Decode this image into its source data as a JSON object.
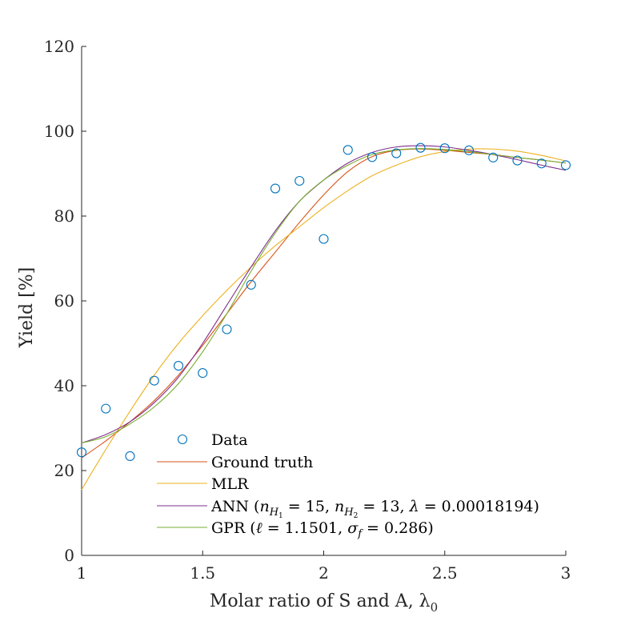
{
  "chart_data": {
    "type": "line",
    "xlabel": "Molar ratio of S and A, λ",
    "xlabel_subscript": "0",
    "ylabel": "Yield [%]",
    "xlim": [
      1,
      3
    ],
    "ylim": [
      0,
      120
    ],
    "x_ticks": [
      1,
      1.5,
      2,
      2.5,
      3
    ],
    "x_tick_labels": [
      "1",
      "1.5",
      "2",
      "2.5",
      "3"
    ],
    "y_ticks": [
      0,
      20,
      40,
      60,
      80,
      100,
      120
    ],
    "y_tick_labels": [
      "0",
      "20",
      "40",
      "60",
      "80",
      "100",
      "120"
    ],
    "grid": false,
    "legend_position": "bottom-left",
    "series": [
      {
        "name": "Data",
        "kind": "scatter",
        "marker": "open-circle",
        "color": "#0072BD",
        "x": [
          1.0,
          1.1,
          1.2,
          1.3,
          1.4,
          1.5,
          1.6,
          1.7,
          1.8,
          1.9,
          2.0,
          2.1,
          2.2,
          2.3,
          2.4,
          2.5,
          2.6,
          2.7,
          2.8,
          2.9,
          3.0
        ],
        "y": [
          24.3,
          34.6,
          23.4,
          41.2,
          44.7,
          43.0,
          53.3,
          63.8,
          86.5,
          88.3,
          74.6,
          95.6,
          93.9,
          94.8,
          96.1,
          96.0,
          95.5,
          93.8,
          93.1,
          92.4,
          92.0
        ]
      },
      {
        "name": "Ground truth",
        "kind": "line",
        "color": "#D95319",
        "x": [
          1.0,
          1.1,
          1.2,
          1.3,
          1.4,
          1.5,
          1.6,
          1.7,
          1.8,
          1.9,
          2.0,
          2.1,
          2.2,
          2.3,
          2.4,
          2.5,
          2.6,
          2.7,
          2.8,
          2.9,
          3.0
        ],
        "y": [
          23.0,
          27.0,
          31.5,
          36.5,
          42.5,
          49.5,
          57.0,
          64.5,
          71.5,
          78.5,
          85.0,
          90.5,
          94.0,
          95.5,
          95.8,
          95.5,
          95.0,
          94.5,
          93.8,
          93.2,
          92.5
        ]
      },
      {
        "name": "MLR",
        "kind": "line",
        "color": "#EDB120",
        "x": [
          1.0,
          1.1,
          1.2,
          1.3,
          1.4,
          1.5,
          1.6,
          1.7,
          1.8,
          1.9,
          2.0,
          2.1,
          2.2,
          2.3,
          2.4,
          2.5,
          2.6,
          2.7,
          2.8,
          2.9,
          3.0
        ],
        "y": [
          15.5,
          25.0,
          34.0,
          42.5,
          50.0,
          56.5,
          62.5,
          68.0,
          73.0,
          77.5,
          82.0,
          86.0,
          89.5,
          92.0,
          94.0,
          95.2,
          95.8,
          95.8,
          95.3,
          94.3,
          93.0
        ]
      },
      {
        "name": "ANN (n_H1 = 15, n_H2 = 13, λ = 0.00018194)",
        "kind": "line",
        "color": "#7E2F8E",
        "x": [
          1.0,
          1.1,
          1.2,
          1.3,
          1.4,
          1.5,
          1.6,
          1.7,
          1.8,
          1.9,
          2.0,
          2.1,
          2.2,
          2.3,
          2.4,
          2.5,
          2.6,
          2.7,
          2.8,
          2.9,
          3.0
        ],
        "y": [
          26.5,
          28.5,
          31.5,
          36.0,
          42.0,
          50.0,
          59.0,
          68.0,
          76.5,
          83.5,
          88.5,
          92.5,
          95.0,
          96.3,
          96.6,
          96.3,
          95.5,
          94.5,
          93.3,
          92.0,
          90.8
        ]
      },
      {
        "name": "GPR (ℓ = 1.1501, σ_f = 0.286)",
        "kind": "line",
        "color": "#77AC30",
        "x": [
          1.0,
          1.1,
          1.2,
          1.3,
          1.4,
          1.5,
          1.6,
          1.7,
          1.8,
          1.9,
          2.0,
          2.1,
          2.2,
          2.3,
          2.4,
          2.5,
          2.6,
          2.7,
          2.8,
          2.9,
          3.0
        ],
        "y": [
          26.5,
          28.0,
          31.0,
          35.0,
          40.5,
          48.0,
          57.0,
          67.0,
          76.0,
          83.5,
          88.5,
          92.0,
          94.5,
          95.6,
          95.9,
          95.7,
          95.2,
          94.5,
          93.8,
          93.2,
          92.5
        ]
      }
    ],
    "legend": [
      {
        "marker": "circle",
        "series": 0,
        "parts": [
          {
            "text": "Data"
          }
        ]
      },
      {
        "marker": "line",
        "series": 1,
        "parts": [
          {
            "text": "Ground truth"
          }
        ]
      },
      {
        "marker": "line",
        "series": 2,
        "parts": [
          {
            "text": "MLR"
          }
        ]
      },
      {
        "marker": "line",
        "series": 3,
        "parts": [
          {
            "text": "ANN ("
          },
          {
            "text": "n",
            "style": "italic"
          },
          {
            "text": "H",
            "style": "italic",
            "sub": true
          },
          {
            "text": "1",
            "sub2": true
          },
          {
            "text": " = 15, "
          },
          {
            "text": "n",
            "style": "italic"
          },
          {
            "text": "H",
            "style": "italic",
            "sub": true
          },
          {
            "text": "2",
            "sub2": true
          },
          {
            "text": " = 13, "
          },
          {
            "text": "λ",
            "style": "italic"
          },
          {
            "text": " = 0.00018194)"
          }
        ]
      },
      {
        "marker": "line",
        "series": 4,
        "parts": [
          {
            "text": "GPR ("
          },
          {
            "text": "ℓ",
            "style": "italic"
          },
          {
            "text": " = 1.1501, "
          },
          {
            "text": "σ",
            "style": "italic"
          },
          {
            "text": "f",
            "style": "italic",
            "sub": true
          },
          {
            "text": " = 0.286)"
          }
        ]
      }
    ]
  }
}
